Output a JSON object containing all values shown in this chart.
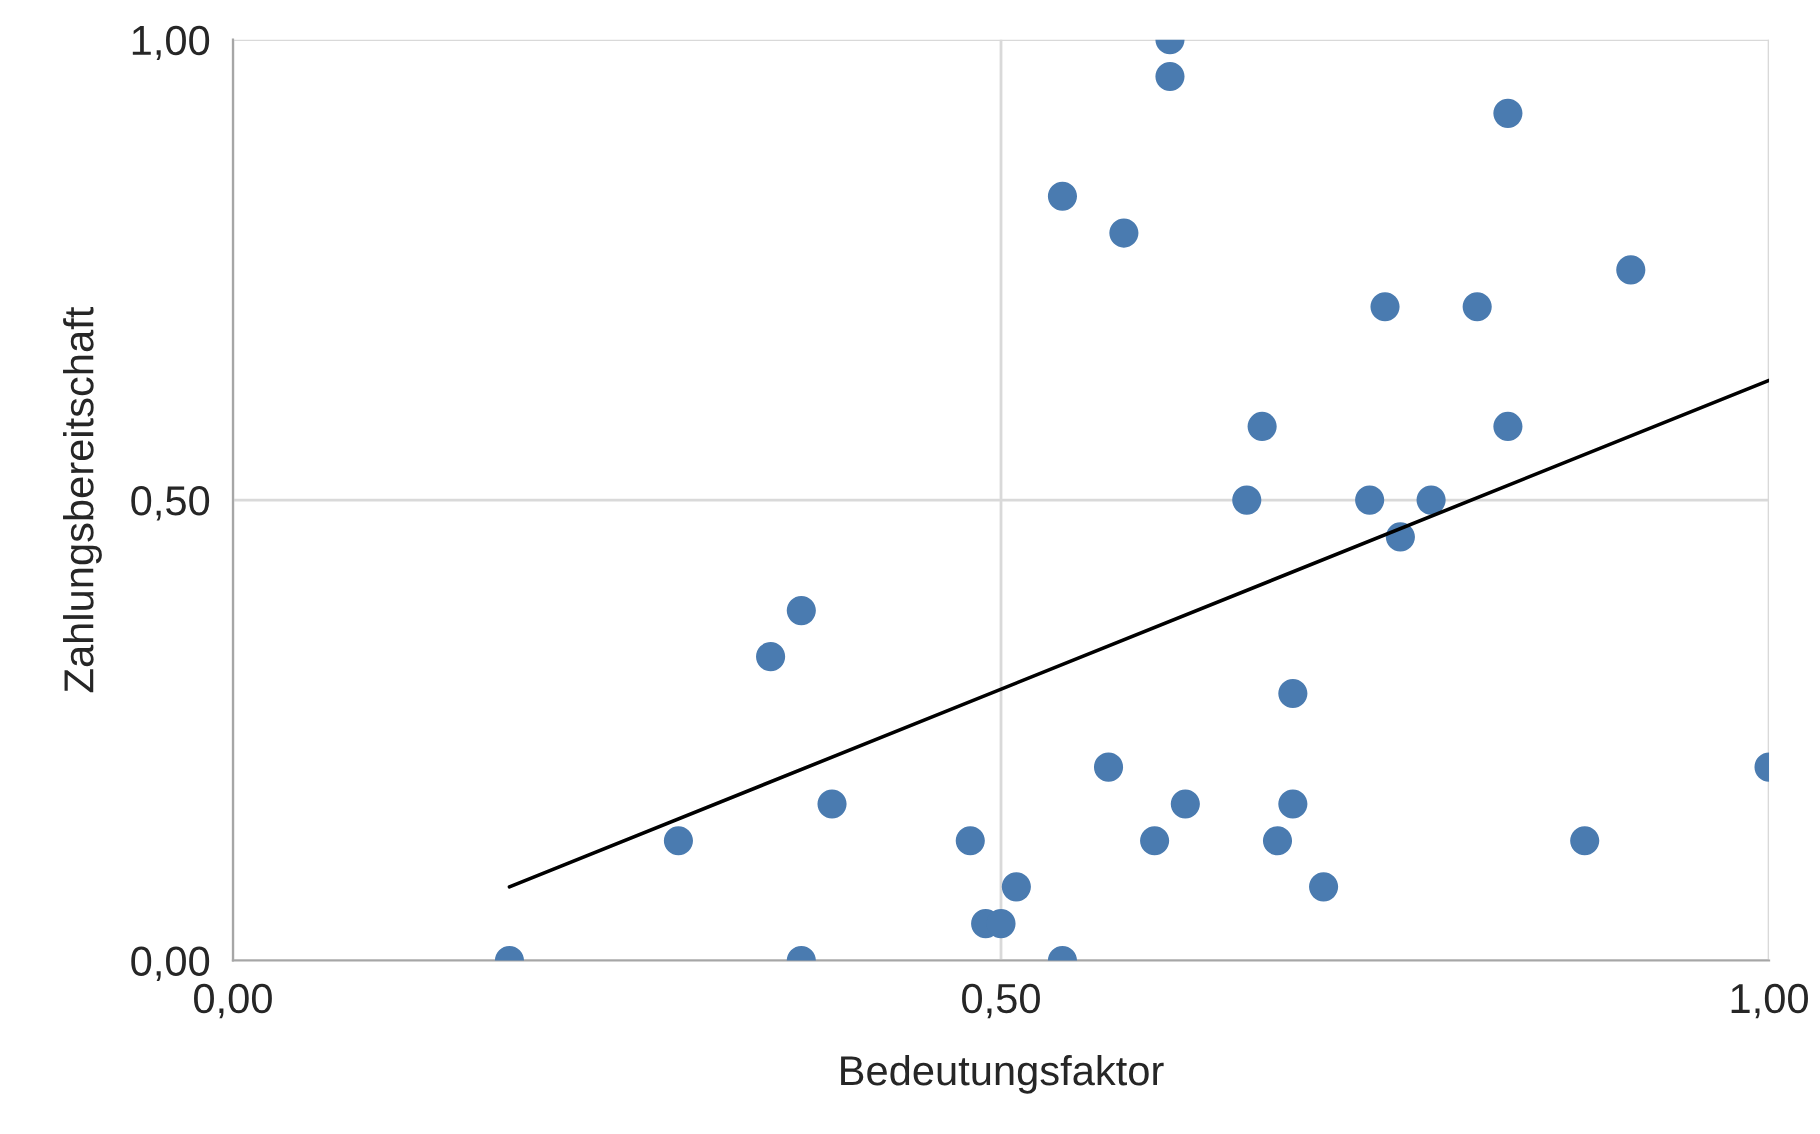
{
  "chart_data": {
    "type": "scatter",
    "xlabel": "Bedeutungsfaktor",
    "ylabel": "Zahlungsbereitschaft",
    "xlim": [
      0,
      1
    ],
    "ylim": [
      0,
      1
    ],
    "xticks": [
      {
        "value": 0,
        "label": "0,00"
      },
      {
        "value": 0.5,
        "label": "0,50"
      },
      {
        "value": 1,
        "label": "1,00"
      }
    ],
    "yticks": [
      {
        "value": 0,
        "label": "0,00"
      },
      {
        "value": 0.5,
        "label": "0,50"
      },
      {
        "value": 1,
        "label": "1,00"
      }
    ],
    "grid": true,
    "series": [
      {
        "marker": "circle",
        "color": "#4a7bb0",
        "x": [
          0.18,
          0.29,
          0.35,
          0.37,
          0.37,
          0.39,
          0.48,
          0.49,
          0.5,
          0.51,
          0.54,
          0.54,
          0.57,
          0.58,
          0.6,
          0.61,
          0.61,
          0.62,
          0.66,
          0.67,
          0.68,
          0.69,
          0.69,
          0.71,
          0.74,
          0.75,
          0.76,
          0.78,
          0.81,
          0.83,
          0.83,
          0.88,
          0.91,
          1.0
        ],
        "values": [
          0.0,
          0.13,
          0.33,
          0.38,
          0.0,
          0.17,
          0.13,
          0.04,
          0.04,
          0.08,
          0.83,
          0.0,
          0.21,
          0.79,
          0.13,
          1.0,
          0.96,
          0.17,
          0.5,
          0.58,
          0.13,
          0.29,
          0.17,
          0.08,
          0.5,
          0.71,
          0.46,
          0.5,
          0.71,
          0.58,
          0.92,
          0.13,
          0.75,
          0.21
        ]
      },
      {
        "type": "line",
        "color": "#000000",
        "x": [
          0.18,
          1.0
        ],
        "values": [
          0.08,
          0.63
        ]
      }
    ]
  }
}
